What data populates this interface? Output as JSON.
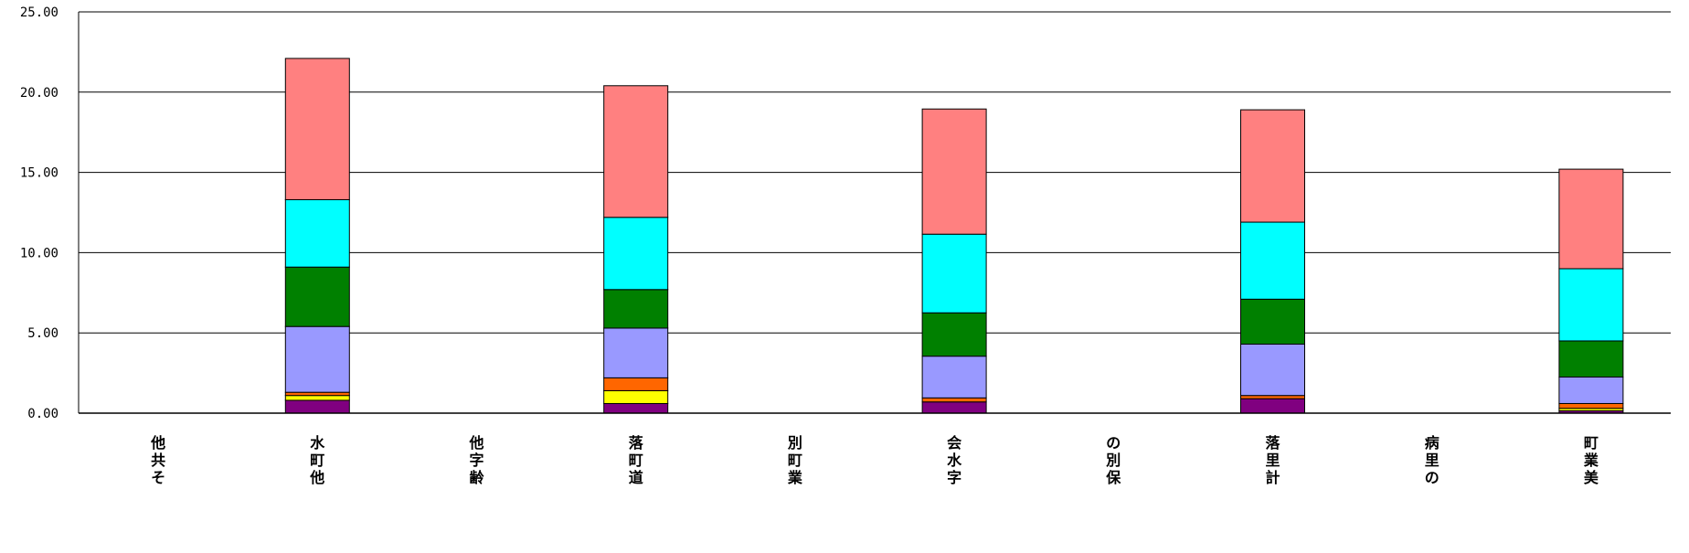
{
  "chart_data": {
    "type": "bar",
    "stacked": true,
    "title": "",
    "xlabel": "",
    "ylabel": "",
    "ylim": [
      0,
      25
    ],
    "y_ticks": [
      "0.00",
      "5.00",
      "10.00",
      "15.00",
      "20.00",
      "25.00"
    ],
    "y_tick_values": [
      0,
      5,
      10,
      15,
      20,
      25
    ],
    "grid": true,
    "legend": "none",
    "categories": [
      "他共そ",
      "水町他",
      "他字齢",
      "落町道",
      "別町業",
      "会水字",
      "の別保",
      "落里計",
      "病里の",
      "町業美"
    ],
    "series": [
      {
        "color": "#800080",
        "values": [
          0,
          0.8,
          0,
          0.6,
          0,
          0.7,
          0,
          0.9,
          0,
          0.15
        ]
      },
      {
        "color": "#FFFF00",
        "values": [
          0,
          0.3,
          0,
          0.8,
          0,
          0.0,
          0,
          0.0,
          0,
          0.15
        ]
      },
      {
        "color": "#FF6600",
        "values": [
          0,
          0.2,
          0,
          0.8,
          0,
          0.25,
          0,
          0.2,
          0,
          0.3
        ]
      },
      {
        "color": "#9999FF",
        "values": [
          0,
          4.1,
          0,
          3.1,
          0,
          2.6,
          0,
          3.2,
          0,
          1.65
        ]
      },
      {
        "color": "#008000",
        "values": [
          0,
          3.7,
          0,
          2.4,
          0,
          2.7,
          0,
          2.8,
          0,
          2.25
        ]
      },
      {
        "color": "#00FFFF",
        "values": [
          0,
          4.2,
          0,
          4.5,
          0,
          4.9,
          0,
          4.8,
          0,
          4.5
        ]
      },
      {
        "color": "#FF8080",
        "values": [
          0,
          8.8,
          0,
          8.2,
          0,
          7.8,
          0,
          7.0,
          0,
          6.2
        ]
      }
    ]
  }
}
